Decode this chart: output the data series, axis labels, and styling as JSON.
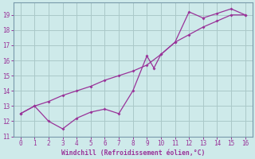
{
  "xlabel": "Windchill (Refroidissement éolien,°C)",
  "xlim": [
    -0.5,
    16.5
  ],
  "ylim": [
    11,
    19.8
  ],
  "xticks": [
    0,
    1,
    2,
    3,
    4,
    5,
    6,
    7,
    8,
    9,
    10,
    11,
    12,
    13,
    14,
    15,
    16
  ],
  "yticks": [
    11,
    12,
    13,
    14,
    15,
    16,
    17,
    18,
    19
  ],
  "bg_color": "#ceeaea",
  "line_color": "#993399",
  "grid_color": "#aac8c8",
  "spine_color": "#7799aa",
  "line1_x": [
    0,
    1,
    2,
    3,
    4,
    5,
    6,
    7,
    8,
    9,
    9.5,
    10,
    11,
    12,
    13,
    14,
    15,
    16
  ],
  "line1_y": [
    12.5,
    13.0,
    12.0,
    11.5,
    12.2,
    12.6,
    12.8,
    12.5,
    14.0,
    16.3,
    15.5,
    16.4,
    17.2,
    19.2,
    18.8,
    19.1,
    19.4,
    19.0
  ],
  "line2_x": [
    0,
    1,
    2,
    3,
    4,
    5,
    6,
    7,
    8,
    9,
    10,
    11,
    12,
    13,
    14,
    15,
    16
  ],
  "line2_y": [
    12.5,
    13.0,
    13.3,
    13.7,
    14.0,
    14.3,
    14.7,
    15.0,
    15.3,
    15.7,
    16.4,
    17.2,
    17.7,
    18.2,
    18.6,
    19.0,
    19.0
  ]
}
